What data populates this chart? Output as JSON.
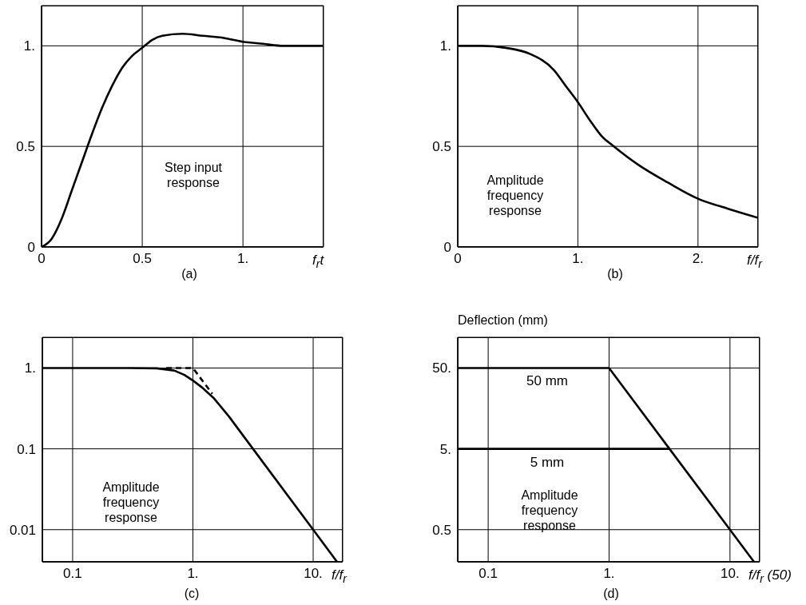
{
  "chart_data": [
    {
      "type": "line",
      "xlim": [
        0,
        1.4
      ],
      "ylim": [
        0,
        1.2
      ],
      "xticks": [
        0,
        0.5,
        {
          "value": 1,
          "label": "1."
        }
      ],
      "yticks": [
        0,
        0.5,
        {
          "value": 1,
          "label": "1."
        }
      ],
      "xlabel": "f$_{r}$t",
      "grid": true,
      "annotations": [
        "Step input response",
        "(a)"
      ],
      "series": [
        {
          "color": "#000000",
          "x": [
            0,
            0.05,
            0.1,
            0.15,
            0.2,
            0.25,
            0.3,
            0.35,
            0.4,
            0.45,
            0.5,
            0.55,
            0.6,
            0.7,
            0.8,
            0.9,
            1.0,
            1.1,
            1.2,
            1.3,
            1.4
          ],
          "values": [
            0,
            0.04,
            0.14,
            0.28,
            0.42,
            0.56,
            0.69,
            0.8,
            0.89,
            0.95,
            0.99,
            1.03,
            1.05,
            1.06,
            1.05,
            1.04,
            1.02,
            1.01,
            1.0,
            1.0,
            1.0
          ]
        }
      ]
    },
    {
      "type": "line",
      "xlim": [
        0,
        2.5
      ],
      "ylim": [
        0,
        1.2
      ],
      "xticks": [
        0,
        {
          "value": 1,
          "label": "1."
        },
        {
          "value": 2,
          "label": "2."
        }
      ],
      "yticks": [
        0,
        0.5,
        {
          "value": 1,
          "label": "1."
        }
      ],
      "xlabel": "f/f$_{r}$",
      "grid": true,
      "annotations": [
        "Amplitude frequency response",
        "(b)"
      ],
      "series": [
        {
          "color": "#000000",
          "x": [
            0,
            0.2,
            0.4,
            0.6,
            0.8,
            0.9,
            1.0,
            1.1,
            1.2,
            1.3,
            1.5,
            1.75,
            2.0,
            2.25,
            2.5
          ],
          "values": [
            1,
            1,
            0.99,
            0.96,
            0.88,
            0.8,
            0.72,
            0.63,
            0.55,
            0.5,
            0.41,
            0.32,
            0.24,
            0.19,
            0.145
          ]
        }
      ]
    },
    {
      "type": "line",
      "log": "xy",
      "xlim": [
        0.056,
        17.6
      ],
      "ylim": [
        0.004,
        2.4
      ],
      "xticks": [
        0.1,
        {
          "value": 1,
          "label": "1."
        },
        {
          "value": 10,
          "label": "10."
        }
      ],
      "yticks": [
        0.01,
        0.1,
        {
          "value": 1,
          "label": "1."
        }
      ],
      "xlabel": "f/f$_{r}$",
      "grid": true,
      "annotations": [
        "Amplitude frequency response",
        "(c)"
      ],
      "series": [
        {
          "color": "#000000",
          "x": [
            0.056,
            0.3,
            0.5,
            0.7,
            0.85,
            1,
            1.2,
            1.5,
            2,
            3.16,
            10,
            15.8
          ],
          "values": [
            1,
            1,
            0.99,
            0.93,
            0.82,
            0.7,
            0.57,
            0.42,
            0.25,
            0.1,
            0.01,
            0.004
          ]
        },
        {
          "color": "#000000",
          "line_style": "dashed",
          "x": [
            0.6,
            1,
            1.45
          ],
          "values": [
            1,
            1,
            0.48
          ]
        }
      ]
    },
    {
      "type": "line",
      "log": "xy",
      "xlim": [
        0.056,
        17.6
      ],
      "ylim": [
        0.2,
        120
      ],
      "xticks": [
        0.1,
        {
          "value": 1,
          "label": "1."
        },
        {
          "value": 10,
          "label": "10."
        }
      ],
      "yticks": [
        0.5,
        {
          "value": 5,
          "label": "5."
        },
        {
          "value": 50,
          "label": "50."
        }
      ],
      "xlabel": "f/f$_{r}$ (50)",
      "ylabel": "Deflection (mm)",
      "grid": true,
      "annotations": [
        "Amplitude frequency response",
        "(d)"
      ],
      "series": [
        {
          "name": "50 mm",
          "color": "#000000",
          "x": [
            0.056,
            1,
            3.16,
            10,
            15.8
          ],
          "values": [
            50,
            50,
            5,
            0.5,
            0.2
          ]
        },
        {
          "name": "5 mm",
          "color": "#000000",
          "x": [
            0.056,
            3.16
          ],
          "values": [
            5,
            5
          ]
        }
      ]
    }
  ]
}
